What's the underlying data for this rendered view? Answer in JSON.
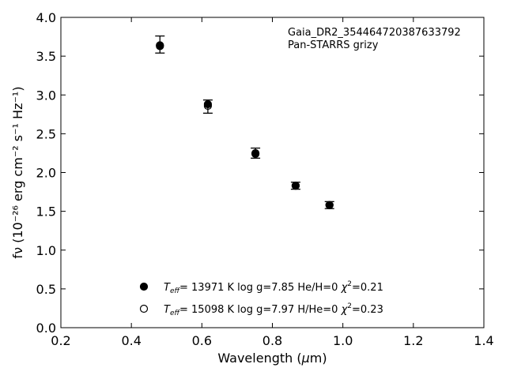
{
  "chart_data": {
    "type": "scatter",
    "xlabel": "Wavelength (μm)",
    "ylabel": "fν (10⁻²⁶ erg cm⁻² s⁻¹ Hz⁻¹)",
    "xlim": [
      0.2,
      1.4
    ],
    "ylim": [
      0.0,
      4.0
    ],
    "xticks": [
      "0.2",
      "0.4",
      "0.6",
      "0.8",
      "1.0",
      "1.2",
      "1.4"
    ],
    "yticks": [
      "0.0",
      "0.5",
      "1.0",
      "1.5",
      "2.0",
      "2.5",
      "3.0",
      "3.5",
      "4.0"
    ],
    "grid": false,
    "annotation": [
      "Gaia_DR2_3544647203876337​92",
      "Pan-STARRS grizy"
    ],
    "legend_placement": "lower-center",
    "observed": {
      "x": [
        0.481,
        0.617,
        0.752,
        0.866,
        0.962
      ],
      "y": [
        3.65,
        2.85,
        2.25,
        1.83,
        1.58
      ],
      "yerr": [
        0.11,
        0.085,
        0.065,
        0.045,
        0.045
      ]
    },
    "series": [
      {
        "name": "He/H=0",
        "marker": "filled",
        "legend_text": "T_eff= 13971 K  log g=7.85  He/H=0  χ²=0.21",
        "teff": "T",
        "teff_sub": "eff",
        "rest1": "= 13971 K  log g=7.85  He/H=0  ",
        "chi": "χ",
        "chi_sup": "2",
        "rest2": "=0.21",
        "x": [
          0.481,
          0.617,
          0.752,
          0.866,
          0.962
        ],
        "y": [
          3.63,
          2.88,
          2.24,
          1.83,
          1.58
        ]
      },
      {
        "name": "H/He=0",
        "marker": "open",
        "legend_text": "T_eff= 15098 K  log g=7.97  H/He=0  χ²=0.23",
        "teff": "T",
        "teff_sub": "eff",
        "rest1": "= 15098 K  log g=7.97  H/He=0  ",
        "chi": "χ",
        "chi_sup": "2",
        "rest2": "=0.23",
        "x": [
          0.481,
          0.617,
          0.752,
          0.866,
          0.962
        ],
        "y": [
          3.64,
          2.86,
          2.25,
          1.83,
          1.58
        ]
      }
    ]
  },
  "colors": {
    "marker": "#000000",
    "axis": "#000000",
    "background": "#ffffff"
  }
}
